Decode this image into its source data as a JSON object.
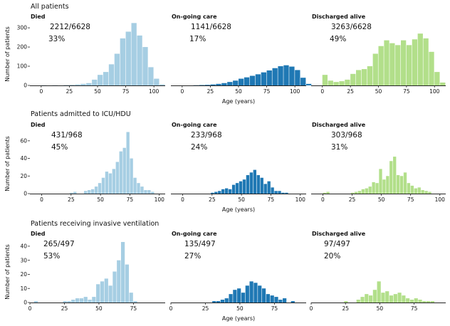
{
  "figure": {
    "x_axis_label": "Age (years)",
    "y_axis_label": "Number of patients",
    "colors": {
      "Died": "#a6cee3",
      "On-going care": "#1f78b4",
      "Discharged alive": "#b2df8a"
    }
  },
  "chart_data": [
    {
      "type": "bar",
      "section": "All patients",
      "ylabel": "Number of patients",
      "xlabel": "Age (years)",
      "panels": [
        {
          "title": "Died",
          "count_text": "2212/6628",
          "percent_text": "33%",
          "xlim": [
            -10,
            110
          ],
          "ylim": [
            0,
            330
          ],
          "xticks": [
            0,
            25,
            50,
            75,
            100
          ],
          "yticks": [
            0,
            100,
            200,
            300
          ],
          "bin_start": 0,
          "bin_width": 5,
          "values": [
            1,
            0,
            1,
            0,
            2,
            3,
            5,
            8,
            12,
            30,
            55,
            70,
            110,
            165,
            245,
            280,
            325,
            260,
            200,
            95,
            35,
            5
          ]
        },
        {
          "title": "On-going care",
          "count_text": "1141/6628",
          "percent_text": "17%",
          "xlim": [
            -10,
            110
          ],
          "ylim": [
            0,
            330
          ],
          "xticks": [
            0,
            25,
            50,
            75,
            100
          ],
          "yticks": [
            0,
            100,
            200,
            300
          ],
          "bin_start": 0,
          "bin_width": 5,
          "values": [
            0,
            0,
            1,
            2,
            3,
            5,
            8,
            12,
            18,
            25,
            35,
            42,
            50,
            58,
            68,
            78,
            90,
            100,
            105,
            98,
            80,
            40,
            8
          ]
        },
        {
          "title": "Discharged alive",
          "count_text": "3263/6628",
          "percent_text": "49%",
          "xlim": [
            -10,
            110
          ],
          "ylim": [
            0,
            330
          ],
          "xticks": [
            0,
            25,
            50,
            75,
            100
          ],
          "yticks": [
            0,
            100,
            200,
            300
          ],
          "bin_start": 0,
          "bin_width": 5,
          "values": [
            55,
            25,
            18,
            22,
            30,
            60,
            80,
            85,
            100,
            165,
            205,
            235,
            220,
            210,
            235,
            210,
            240,
            270,
            245,
            175,
            70,
            15
          ]
        }
      ]
    },
    {
      "type": "bar",
      "section": "Patients admitted to ICU/HDU",
      "ylabel": "Number of patients",
      "xlabel": "Age (years)",
      "panels": [
        {
          "title": "Died",
          "count_text": "431/968",
          "percent_text": "45%",
          "xlim": [
            -10,
            105
          ],
          "ylim": [
            0,
            72
          ],
          "xticks": [
            0,
            25,
            50,
            75,
            100
          ],
          "yticks": [
            0,
            20,
            40,
            60
          ],
          "bin_start": 0,
          "bin_width": 3,
          "values": [
            0,
            0,
            0,
            0,
            0,
            0,
            0,
            0,
            1,
            2,
            0,
            0,
            3,
            4,
            5,
            8,
            12,
            18,
            25,
            23,
            28,
            36,
            48,
            52,
            70,
            40,
            18,
            12,
            8,
            4,
            4,
            2,
            0
          ]
        },
        {
          "title": "On-going care",
          "count_text": "233/968",
          "percent_text": "24%",
          "xlim": [
            -10,
            105
          ],
          "ylim": [
            0,
            72
          ],
          "xticks": [
            0,
            25,
            50,
            75,
            100
          ],
          "yticks": [
            0,
            20,
            40,
            60
          ],
          "bin_start": 0,
          "bin_width": 3,
          "values": [
            0,
            0,
            0,
            0,
            0,
            0,
            0,
            0,
            1,
            2,
            3,
            5,
            6,
            5,
            10,
            12,
            14,
            16,
            21,
            24,
            27,
            21,
            18,
            11,
            14,
            7,
            3,
            3,
            1,
            1,
            0,
            0,
            0
          ]
        },
        {
          "title": "Discharged alive",
          "count_text": "303/968",
          "percent_text": "31%",
          "xlim": [
            -10,
            105
          ],
          "ylim": [
            0,
            72
          ],
          "xticks": [
            0,
            25,
            50,
            75,
            100
          ],
          "yticks": [
            0,
            20,
            40,
            60
          ],
          "bin_start": 0,
          "bin_width": 3,
          "values": [
            1,
            2,
            0,
            0,
            0,
            0,
            0,
            0,
            1,
            2,
            3,
            5,
            6,
            8,
            13,
            12,
            28,
            16,
            20,
            37,
            42,
            21,
            20,
            24,
            12,
            9,
            6,
            7,
            4,
            3,
            2,
            0,
            0
          ]
        }
      ]
    },
    {
      "type": "bar",
      "section": "Patients receiving invasive ventilation",
      "ylabel": "Number of patients",
      "xlabel": "Age (years)",
      "panels": [
        {
          "title": "Died",
          "count_text": "265/497",
          "percent_text": "53%",
          "xlim": [
            0,
            98
          ],
          "ylim": [
            0,
            45
          ],
          "xticks": [
            0,
            25,
            50,
            75
          ],
          "yticks": [
            0,
            10,
            20,
            30,
            40
          ],
          "bin_start": 0,
          "bin_width": 3,
          "values": [
            0,
            1,
            0,
            0,
            0,
            0,
            0,
            0,
            1,
            1,
            2,
            3,
            3,
            4,
            2,
            4,
            13,
            15,
            17,
            12,
            22,
            30,
            43,
            27,
            7,
            1,
            0,
            0,
            0,
            0,
            0,
            0
          ]
        },
        {
          "title": "On-going care",
          "count_text": "135/497",
          "percent_text": "27%",
          "xlim": [
            0,
            98
          ],
          "ylim": [
            0,
            45
          ],
          "xticks": [
            0,
            25,
            50,
            75
          ],
          "yticks": [
            0,
            10,
            20,
            30,
            40
          ],
          "bin_start": 0,
          "bin_width": 3,
          "values": [
            0,
            0,
            0,
            0,
            0,
            0,
            0,
            0,
            0,
            0,
            1,
            1,
            2,
            3,
            6,
            9,
            10,
            7,
            12,
            15,
            14,
            12,
            10,
            6,
            5,
            4,
            2,
            3,
            0,
            1,
            0,
            0
          ]
        },
        {
          "title": "Discharged alive",
          "count_text": "97/497",
          "percent_text": "20%",
          "xlim": [
            0,
            98
          ],
          "ylim": [
            0,
            45
          ],
          "xticks": [
            0,
            25,
            50,
            75
          ],
          "yticks": [
            0,
            10,
            20,
            30,
            40
          ],
          "bin_start": 0,
          "bin_width": 3,
          "values": [
            0,
            0,
            0,
            0,
            0,
            0,
            0,
            0,
            1,
            0,
            0,
            2,
            4,
            6,
            5,
            9,
            15,
            7,
            8,
            5,
            6,
            7,
            5,
            3,
            2,
            3,
            2,
            1,
            1,
            1,
            0,
            0
          ]
        }
      ]
    }
  ]
}
